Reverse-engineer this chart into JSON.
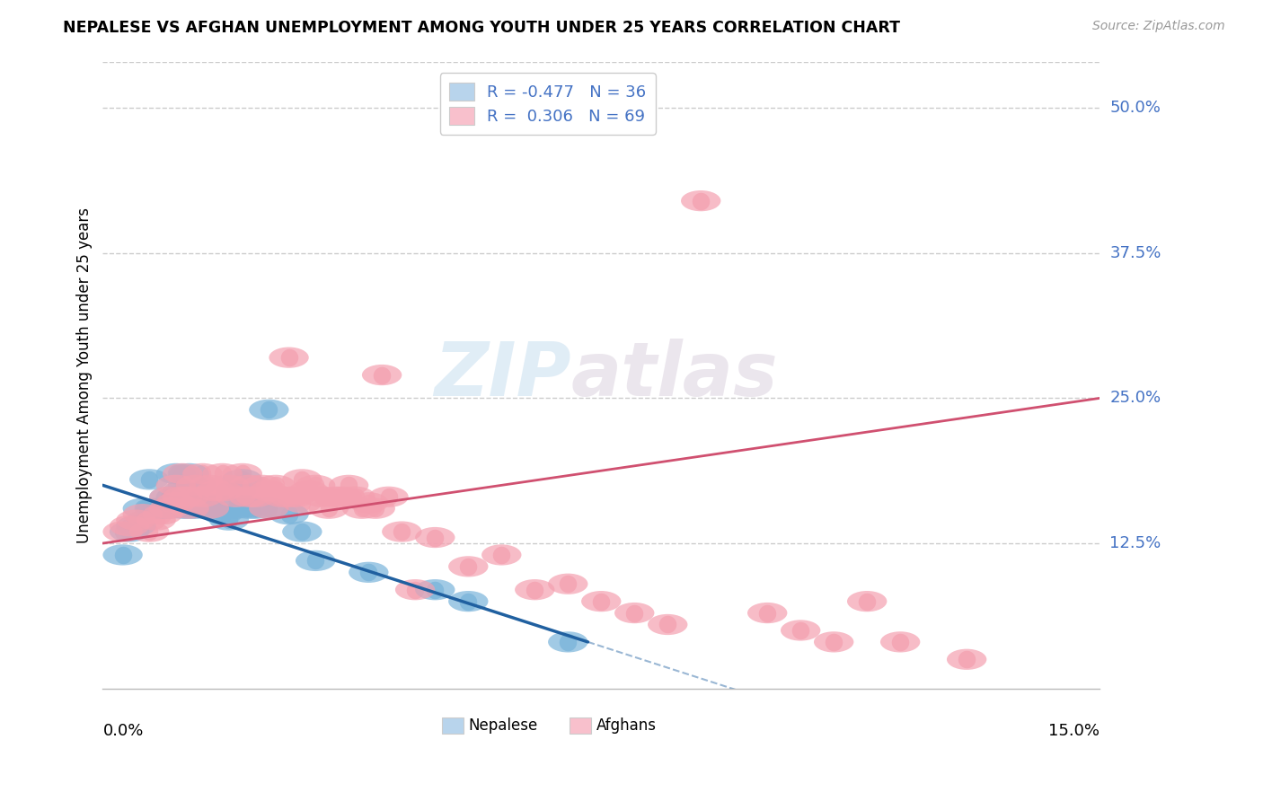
{
  "title": "NEPALESE VS AFGHAN UNEMPLOYMENT AMONG YOUTH UNDER 25 YEARS CORRELATION CHART",
  "source": "Source: ZipAtlas.com",
  "ylabel": "Unemployment Among Youth under 25 years",
  "ytick_labels": [
    "50.0%",
    "37.5%",
    "25.0%",
    "12.5%"
  ],
  "ytick_vals": [
    0.5,
    0.375,
    0.25,
    0.125
  ],
  "xlim": [
    0.0,
    0.15
  ],
  "ylim": [
    0.0,
    0.54
  ],
  "watermark_zip": "ZIP",
  "watermark_atlas": "atlas",
  "legend_r_nepalese": "-0.477",
  "legend_n_nepalese": "36",
  "legend_r_afghan": " 0.306",
  "legend_n_afghan": "69",
  "nepalese_color": "#7ab4da",
  "afghan_color": "#f4a0b0",
  "nepalese_color_light": "#b8d4ec",
  "afghan_color_light": "#f8c0cc",
  "nepalese_line_color": "#2060a0",
  "afghan_line_color": "#d05070",
  "nepalese_x": [
    0.003,
    0.004,
    0.005,
    0.006,
    0.007,
    0.008,
    0.009,
    0.01,
    0.01,
    0.011,
    0.011,
    0.012,
    0.012,
    0.013,
    0.013,
    0.014,
    0.014,
    0.015,
    0.016,
    0.017,
    0.018,
    0.019,
    0.02,
    0.02,
    0.021,
    0.022,
    0.023,
    0.025,
    0.025,
    0.028,
    0.03,
    0.032,
    0.04,
    0.05,
    0.055,
    0.07
  ],
  "nepalese_y": [
    0.115,
    0.135,
    0.14,
    0.155,
    0.18,
    0.155,
    0.155,
    0.155,
    0.165,
    0.165,
    0.185,
    0.155,
    0.17,
    0.155,
    0.185,
    0.155,
    0.175,
    0.16,
    0.155,
    0.155,
    0.15,
    0.145,
    0.155,
    0.17,
    0.18,
    0.155,
    0.155,
    0.24,
    0.155,
    0.15,
    0.135,
    0.11,
    0.1,
    0.085,
    0.075,
    0.04
  ],
  "afghan_x": [
    0.003,
    0.004,
    0.005,
    0.006,
    0.007,
    0.008,
    0.009,
    0.01,
    0.01,
    0.011,
    0.011,
    0.012,
    0.012,
    0.013,
    0.013,
    0.014,
    0.015,
    0.015,
    0.016,
    0.016,
    0.017,
    0.018,
    0.018,
    0.019,
    0.02,
    0.021,
    0.022,
    0.022,
    0.023,
    0.024,
    0.025,
    0.025,
    0.026,
    0.027,
    0.028,
    0.028,
    0.029,
    0.03,
    0.03,
    0.031,
    0.032,
    0.033,
    0.034,
    0.035,
    0.036,
    0.037,
    0.038,
    0.039,
    0.04,
    0.041,
    0.042,
    0.043,
    0.045,
    0.047,
    0.05,
    0.055,
    0.06,
    0.065,
    0.07,
    0.075,
    0.08,
    0.085,
    0.09,
    0.1,
    0.105,
    0.11,
    0.115,
    0.12,
    0.13
  ],
  "afghan_y": [
    0.135,
    0.14,
    0.145,
    0.15,
    0.135,
    0.145,
    0.15,
    0.155,
    0.165,
    0.16,
    0.175,
    0.165,
    0.185,
    0.155,
    0.165,
    0.175,
    0.165,
    0.185,
    0.155,
    0.175,
    0.17,
    0.17,
    0.185,
    0.175,
    0.165,
    0.185,
    0.175,
    0.165,
    0.165,
    0.175,
    0.155,
    0.17,
    0.175,
    0.165,
    0.165,
    0.285,
    0.165,
    0.16,
    0.18,
    0.17,
    0.175,
    0.165,
    0.155,
    0.165,
    0.165,
    0.175,
    0.165,
    0.155,
    0.16,
    0.155,
    0.27,
    0.165,
    0.135,
    0.085,
    0.13,
    0.105,
    0.115,
    0.085,
    0.09,
    0.075,
    0.065,
    0.055,
    0.42,
    0.065,
    0.05,
    0.04,
    0.075,
    0.04,
    0.025
  ],
  "nep_line_x0": 0.0,
  "nep_line_x1": 0.073,
  "nep_line_x_dash_end": 0.15,
  "nep_line_y0": 0.175,
  "nep_line_y1": 0.04,
  "afg_line_x0": 0.0,
  "afg_line_x1": 0.15,
  "afg_line_y0": 0.125,
  "afg_line_y1": 0.25,
  "background_color": "#ffffff",
  "grid_color": "#cccccc"
}
